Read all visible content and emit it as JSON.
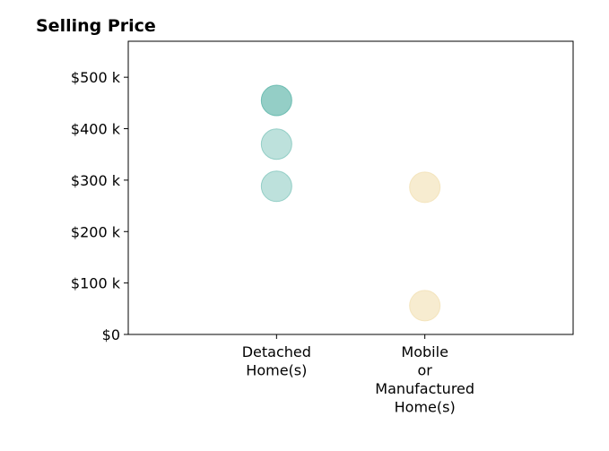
{
  "chart_data": {
    "type": "scatter",
    "title": "Selling Price",
    "xlabel": "",
    "ylabel": "",
    "categories": [
      [
        "Detached",
        "Home(s)"
      ],
      [
        "Mobile",
        "or",
        "Manufactured",
        "Home(s)"
      ]
    ],
    "y_ticks": [
      0,
      100000,
      200000,
      300000,
      400000,
      500000
    ],
    "y_tick_labels": [
      "$0",
      "$100 k",
      "$200 k",
      "$300 k",
      "$400 k",
      "$500 k"
    ],
    "ylim": [
      0,
      570000
    ],
    "grid": false,
    "legend": "none",
    "series": [
      {
        "category_index": 0,
        "color": "#5ab4a8",
        "points": [
          {
            "y": 455000,
            "opacity": 0.65
          },
          {
            "y": 370000,
            "opacity": 0.4
          },
          {
            "y": 288000,
            "opacity": 0.4
          }
        ]
      },
      {
        "category_index": 1,
        "color": "#f2dfb0",
        "points": [
          {
            "y": 286000,
            "opacity": 0.6
          },
          {
            "y": 56000,
            "opacity": 0.6
          }
        ]
      }
    ]
  }
}
